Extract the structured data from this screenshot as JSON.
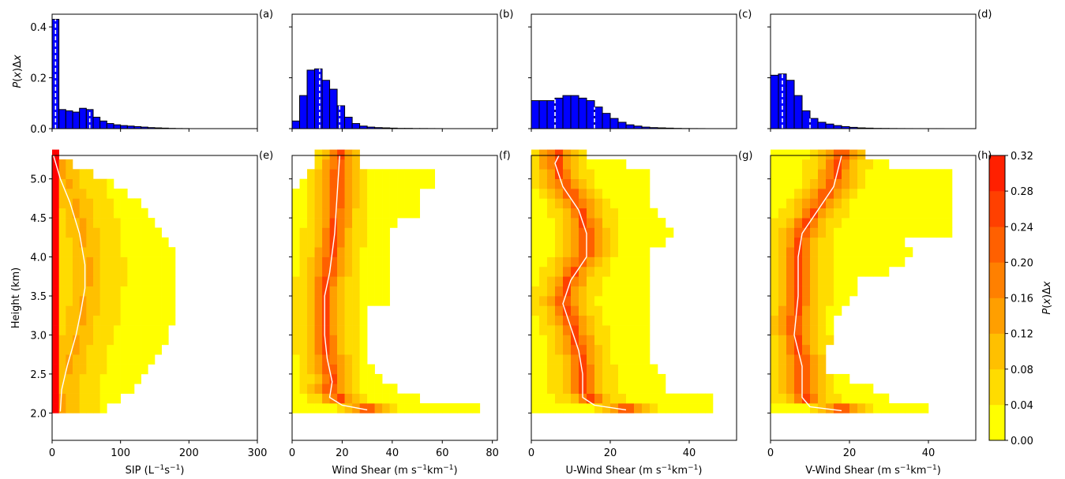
{
  "figure": {
    "shared_y_label": "Height (km)",
    "hist_y_label_html": [
      "P",
      "(",
      "x",
      ")Δ",
      "x"
    ],
    "colorbar_label": "P(x)Δx",
    "colors": {
      "hist_bar": "#0000ff",
      "median_line": "#ffffff",
      "low": "#ffff00",
      "high": "#ff0000"
    }
  },
  "chart_data": [
    {
      "type": "bar",
      "panel_label": "(a)",
      "xlim": [
        0,
        300
      ],
      "ylim": [
        0,
        0.45
      ],
      "ytick_labels": [
        "0.0",
        "0.2",
        "0.4"
      ],
      "yticks": [
        0,
        0.2,
        0.4
      ],
      "bin_width": 10,
      "values": [
        0.43,
        0.075,
        0.07,
        0.065,
        0.08,
        0.075,
        0.045,
        0.03,
        0.02,
        0.015,
        0.012,
        0.01,
        0.008,
        0.006,
        0.004,
        0.003,
        0.002,
        0.001,
        0.0005,
        0.0003
      ],
      "dashed_marker_x": [
        5,
        55
      ]
    },
    {
      "type": "bar",
      "panel_label": "(b)",
      "xlim": [
        0,
        82
      ],
      "ylim": [
        0,
        0.45
      ],
      "bin_width": 3,
      "values": [
        0.03,
        0.13,
        0.23,
        0.235,
        0.19,
        0.155,
        0.09,
        0.045,
        0.02,
        0.01,
        0.006,
        0.004,
        0.003,
        0.002,
        0.001,
        0.001,
        0.0005,
        0.0005,
        0.0003,
        0.0002
      ],
      "dashed_marker_x": [
        11,
        19
      ]
    },
    {
      "type": "bar",
      "panel_label": "(c)",
      "xlim": [
        0,
        52
      ],
      "ylim": [
        0,
        0.45
      ],
      "bin_width": 2,
      "values": [
        0.11,
        0.11,
        0.11,
        0.12,
        0.13,
        0.13,
        0.12,
        0.11,
        0.085,
        0.06,
        0.04,
        0.025,
        0.015,
        0.01,
        0.006,
        0.004,
        0.003,
        0.002,
        0.001,
        0.0005,
        0.0003,
        0.0002
      ],
      "dashed_marker_x": [
        6,
        16
      ]
    },
    {
      "type": "bar",
      "panel_label": "(d)",
      "xlim": [
        0,
        52
      ],
      "ylim": [
        0,
        0.45
      ],
      "bin_width": 2,
      "values": [
        0.21,
        0.215,
        0.19,
        0.13,
        0.07,
        0.04,
        0.025,
        0.018,
        0.012,
        0.008,
        0.005,
        0.003,
        0.002,
        0.001,
        0.0008,
        0.0005,
        0.0003,
        0.0002,
        0.0001,
        0.0001,
        0.0001,
        0.0001
      ],
      "dashed_marker_x": [
        3,
        10
      ]
    },
    {
      "type": "heatmap",
      "panel_label": "(e)",
      "xlabel": "SIP (L⁻¹s⁻¹)",
      "xlabel_parts": [
        "SIP (L",
        "−1",
        "s",
        "−1",
        ")"
      ],
      "xlim": [
        0,
        300
      ],
      "ylim": [
        1.65,
        5.3
      ],
      "xticks": [
        0,
        100,
        200,
        300
      ],
      "xtick_labels": [
        "0",
        "100",
        "200",
        "300"
      ],
      "yticks": [
        2.0,
        2.5,
        3.0,
        3.5,
        4.0,
        4.5,
        5.0
      ],
      "ytick_labels": [
        "2.0",
        "2.5",
        "3.0",
        "3.5",
        "4.0",
        "4.5",
        "5.0"
      ],
      "x_bin": 10,
      "y_bin": 0.125,
      "ranges": [
        [
          2.0,
          0,
          20,
          80
        ],
        [
          2.125,
          0,
          20,
          100
        ],
        [
          2.25,
          0,
          20,
          120
        ],
        [
          2.375,
          0,
          20,
          130
        ],
        [
          2.5,
          0,
          20,
          140
        ],
        [
          2.625,
          0,
          20,
          150
        ],
        [
          2.75,
          0,
          20,
          160
        ],
        [
          2.875,
          0,
          20,
          170
        ],
        [
          3.0,
          0,
          20,
          170
        ],
        [
          3.125,
          0,
          20,
          180
        ],
        [
          3.25,
          0,
          20,
          180
        ],
        [
          3.375,
          0,
          20,
          180
        ],
        [
          3.5,
          0,
          20,
          180
        ],
        [
          3.625,
          0,
          20,
          180
        ],
        [
          3.75,
          0,
          20,
          180
        ],
        [
          3.875,
          0,
          20,
          180
        ],
        [
          4.0,
          0,
          20,
          180
        ],
        [
          4.125,
          0,
          20,
          170
        ],
        [
          4.25,
          0,
          20,
          160
        ],
        [
          4.375,
          0,
          20,
          150
        ],
        [
          4.5,
          0,
          20,
          140
        ],
        [
          4.625,
          0,
          20,
          130
        ],
        [
          4.75,
          0,
          20,
          110
        ],
        [
          4.875,
          0,
          20,
          90
        ],
        [
          5.0,
          0,
          20,
          60
        ],
        [
          5.125,
          0,
          10,
          30
        ],
        [
          5.25,
          0,
          10,
          10
        ]
      ],
      "median_curve": [
        [
          12,
          2.02
        ],
        [
          14,
          2.3
        ],
        [
          22,
          2.6
        ],
        [
          35,
          3.0
        ],
        [
          42,
          3.3
        ],
        [
          48,
          3.6
        ],
        [
          48,
          3.9
        ],
        [
          40,
          4.3
        ],
        [
          26,
          4.7
        ],
        [
          12,
          5.0
        ],
        [
          2,
          5.3
        ]
      ]
    },
    {
      "type": "heatmap",
      "panel_label": "(f)",
      "xlabel": "Wind Shear (m s⁻¹km⁻¹)",
      "xlabel_parts": [
        "Wind Shear (m s",
        "−1",
        "km",
        "−1",
        ")"
      ],
      "xlim": [
        0,
        82
      ],
      "ylim": [
        1.65,
        5.3
      ],
      "xticks": [
        0,
        20,
        40,
        60,
        80
      ],
      "xtick_labels": [
        "0",
        "20",
        "40",
        "60",
        "80"
      ],
      "x_bin": 3,
      "y_bin": 0.125,
      "ranges": [
        [
          2.0,
          0,
          6,
          75
        ],
        [
          2.125,
          0,
          6,
          50
        ],
        [
          2.25,
          0,
          6,
          42
        ],
        [
          2.375,
          0,
          6,
          36
        ],
        [
          2.5,
          0,
          6,
          33
        ],
        [
          2.625,
          0,
          6,
          30
        ],
        [
          2.75,
          0,
          6,
          30
        ],
        [
          2.875,
          0,
          6,
          30
        ],
        [
          3.0,
          0,
          6,
          30
        ],
        [
          3.125,
          0,
          6,
          30
        ],
        [
          3.25,
          0,
          6,
          30
        ],
        [
          3.375,
          0,
          6,
          39
        ],
        [
          3.5,
          0,
          6,
          39
        ],
        [
          3.625,
          0,
          6,
          39
        ],
        [
          3.75,
          0,
          6,
          39
        ],
        [
          3.875,
          0,
          6,
          39
        ],
        [
          4.0,
          0,
          6,
          39
        ],
        [
          4.125,
          0,
          6,
          39
        ],
        [
          4.25,
          0,
          6,
          39
        ],
        [
          4.375,
          0,
          6,
          42
        ],
        [
          4.5,
          0,
          6,
          51
        ],
        [
          4.625,
          0,
          6,
          51
        ],
        [
          4.75,
          0,
          6,
          51
        ],
        [
          4.875,
          3,
          9,
          57
        ],
        [
          5.0,
          6,
          12,
          57
        ],
        [
          5.125,
          9,
          12,
          27
        ],
        [
          5.25,
          9,
          12,
          27
        ]
      ],
      "median_curve": [
        [
          30,
          2.04
        ],
        [
          20,
          2.1
        ],
        [
          15,
          2.2
        ],
        [
          16,
          2.4
        ],
        [
          14,
          2.7
        ],
        [
          13,
          3.0
        ],
        [
          13,
          3.5
        ],
        [
          15,
          3.8
        ],
        [
          17,
          4.3
        ],
        [
          18,
          4.8
        ],
        [
          19,
          5.3
        ]
      ]
    },
    {
      "type": "heatmap",
      "panel_label": "(g)",
      "xlabel": "U-Wind Shear (m s⁻¹km⁻¹)",
      "xlabel_parts": [
        "U-Wind Shear (m s",
        "−1",
        "km",
        "−1",
        ")"
      ],
      "xlim": [
        0,
        52
      ],
      "ylim": [
        1.65,
        5.3
      ],
      "xticks": [
        0,
        20,
        40
      ],
      "xtick_labels": [
        "0",
        "20",
        "40"
      ],
      "x_bin": 2,
      "y_bin": 0.125,
      "ranges": [
        [
          2.0,
          0,
          0,
          46
        ],
        [
          2.125,
          0,
          0,
          46
        ],
        [
          2.25,
          0,
          0,
          34
        ],
        [
          2.375,
          0,
          0,
          34
        ],
        [
          2.5,
          0,
          0,
          32
        ],
        [
          2.625,
          0,
          0,
          30
        ],
        [
          2.75,
          0,
          0,
          30
        ],
        [
          2.875,
          0,
          0,
          30
        ],
        [
          3.0,
          0,
          0,
          30
        ],
        [
          3.125,
          0,
          0,
          30
        ],
        [
          3.25,
          0,
          0,
          30
        ],
        [
          3.375,
          0,
          0,
          30
        ],
        [
          3.5,
          0,
          0,
          30
        ],
        [
          3.625,
          0,
          0,
          30
        ],
        [
          3.75,
          0,
          0,
          30
        ],
        [
          3.875,
          0,
          0,
          30
        ],
        [
          4.0,
          0,
          0,
          30
        ],
        [
          4.125,
          0,
          0,
          34
        ],
        [
          4.25,
          0,
          0,
          36
        ],
        [
          4.375,
          0,
          0,
          34
        ],
        [
          4.5,
          0,
          0,
          32
        ],
        [
          4.625,
          0,
          0,
          30
        ],
        [
          4.75,
          0,
          0,
          30
        ],
        [
          4.875,
          0,
          0,
          30
        ],
        [
          5.0,
          0,
          0,
          30
        ],
        [
          5.125,
          0,
          0,
          24
        ],
        [
          5.25,
          0,
          0,
          14
        ]
      ],
      "median_curve": [
        [
          24,
          2.04
        ],
        [
          16,
          2.1
        ],
        [
          13,
          2.2
        ],
        [
          13,
          2.5
        ],
        [
          12,
          2.8
        ],
        [
          10,
          3.1
        ],
        [
          8,
          3.4
        ],
        [
          10,
          3.7
        ],
        [
          14,
          4.0
        ],
        [
          14,
          4.3
        ],
        [
          12,
          4.6
        ],
        [
          8,
          4.9
        ],
        [
          6,
          5.2
        ],
        [
          7,
          5.3
        ]
      ]
    },
    {
      "type": "heatmap",
      "panel_label": "(h)",
      "xlabel": "V-Wind Shear (m s⁻¹km⁻¹)",
      "xlabel_parts": [
        "V-Wind Shear (m s",
        "−1",
        "km",
        "−1",
        ")"
      ],
      "xlim": [
        0,
        52
      ],
      "ylim": [
        1.65,
        5.3
      ],
      "xticks": [
        0,
        20,
        40
      ],
      "xtick_labels": [
        "0",
        "20",
        "40"
      ],
      "x_bin": 2,
      "y_bin": 0.125,
      "ranges": [
        [
          2.0,
          0,
          0,
          40
        ],
        [
          2.125,
          0,
          0,
          30
        ],
        [
          2.25,
          0,
          0,
          26
        ],
        [
          2.375,
          0,
          0,
          20
        ],
        [
          2.5,
          0,
          0,
          14
        ],
        [
          2.625,
          0,
          0,
          14
        ],
        [
          2.75,
          0,
          0,
          14
        ],
        [
          2.875,
          0,
          0,
          16
        ],
        [
          3.0,
          0,
          0,
          16
        ],
        [
          3.125,
          0,
          0,
          16
        ],
        [
          3.25,
          0,
          0,
          18
        ],
        [
          3.375,
          0,
          0,
          20
        ],
        [
          3.5,
          0,
          0,
          22
        ],
        [
          3.625,
          0,
          0,
          22
        ],
        [
          3.75,
          0,
          0,
          30
        ],
        [
          3.875,
          0,
          0,
          34
        ],
        [
          4.0,
          0,
          0,
          36
        ],
        [
          4.125,
          0,
          0,
          34
        ],
        [
          4.25,
          0,
          0,
          46
        ],
        [
          4.375,
          0,
          0,
          46
        ],
        [
          4.5,
          0,
          0,
          46
        ],
        [
          4.625,
          0,
          0,
          46
        ],
        [
          4.75,
          0,
          0,
          46
        ],
        [
          4.875,
          0,
          0,
          46
        ],
        [
          5.0,
          0,
          0,
          46
        ],
        [
          5.125,
          8,
          12,
          30
        ],
        [
          5.25,
          8,
          12,
          24
        ]
      ],
      "median_curve": [
        [
          18,
          2.03
        ],
        [
          10,
          2.08
        ],
        [
          8,
          2.2
        ],
        [
          8,
          2.6
        ],
        [
          6,
          3.0
        ],
        [
          7,
          3.5
        ],
        [
          7,
          4.0
        ],
        [
          8,
          4.3
        ],
        [
          12,
          4.6
        ],
        [
          16,
          4.9
        ],
        [
          18,
          5.3
        ]
      ]
    },
    {
      "type": "colorbar",
      "label": "P(x)Δx",
      "levels": [
        0.0,
        0.04,
        0.08,
        0.12,
        0.16,
        0.2,
        0.24,
        0.28,
        0.32
      ],
      "tick_labels": [
        "0.00",
        "0.04",
        "0.08",
        "0.12",
        "0.16",
        "0.20",
        "0.24",
        "0.28",
        "0.32"
      ],
      "colors": [
        "#ffff00",
        "#ffdc00",
        "#ffc000",
        "#ff9f00",
        "#ff8000",
        "#ff6000",
        "#ff4000",
        "#ff2000"
      ]
    }
  ]
}
